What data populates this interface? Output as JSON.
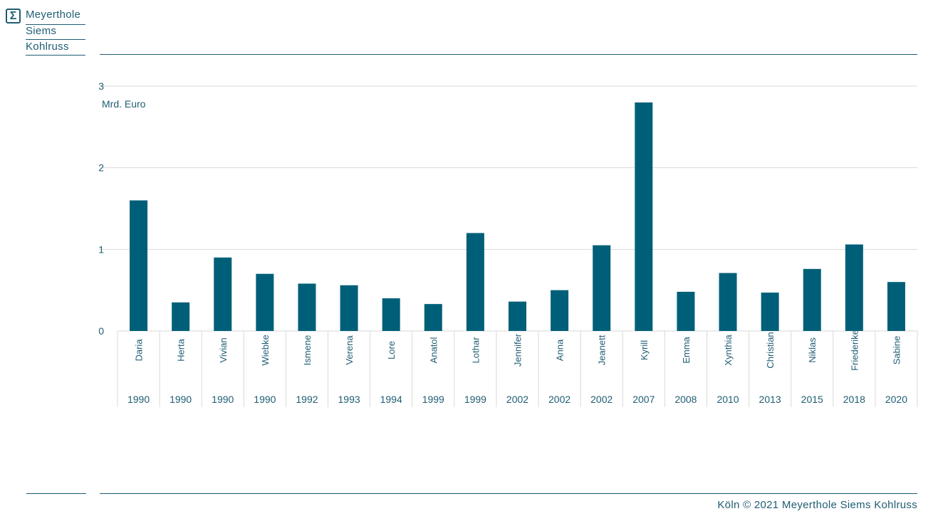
{
  "brand": {
    "icon": "sigma-icon",
    "line1": "Meyerthole",
    "line2": "Siems",
    "line3": "Kohlruss"
  },
  "footer": "Köln © 2021 Meyerthole Siems Kohlruss",
  "colors": {
    "bar": "#005f78",
    "text": "#1f5d73",
    "grid": "#d9d9d9"
  },
  "chart_data": {
    "type": "bar",
    "ylabel": "Mrd. Euro",
    "ylim": [
      0,
      3
    ],
    "yticks": [
      0,
      1,
      2,
      3
    ],
    "grid": true,
    "categories": [
      "Daria",
      "Herta",
      "Vivian",
      "Wiebke",
      "Ismene",
      "Verena",
      "Lore",
      "Anatol",
      "Lothar",
      "Jennifer",
      "Anna",
      "Jeanett",
      "Kyrill",
      "Emma",
      "Xynthia",
      "Christian",
      "Niklas",
      "Friederike",
      "Sabine"
    ],
    "years": [
      "1990",
      "1990",
      "1990",
      "1990",
      "1992",
      "1993",
      "1994",
      "1999",
      "1999",
      "2002",
      "2002",
      "2002",
      "2007",
      "2008",
      "2010",
      "2013",
      "2015",
      "2018",
      "2020"
    ],
    "values": [
      1.6,
      0.35,
      0.9,
      0.7,
      0.58,
      0.56,
      0.4,
      0.33,
      1.2,
      0.36,
      0.5,
      1.05,
      2.8,
      0.48,
      0.71,
      0.47,
      0.76,
      1.06,
      0.6
    ]
  }
}
